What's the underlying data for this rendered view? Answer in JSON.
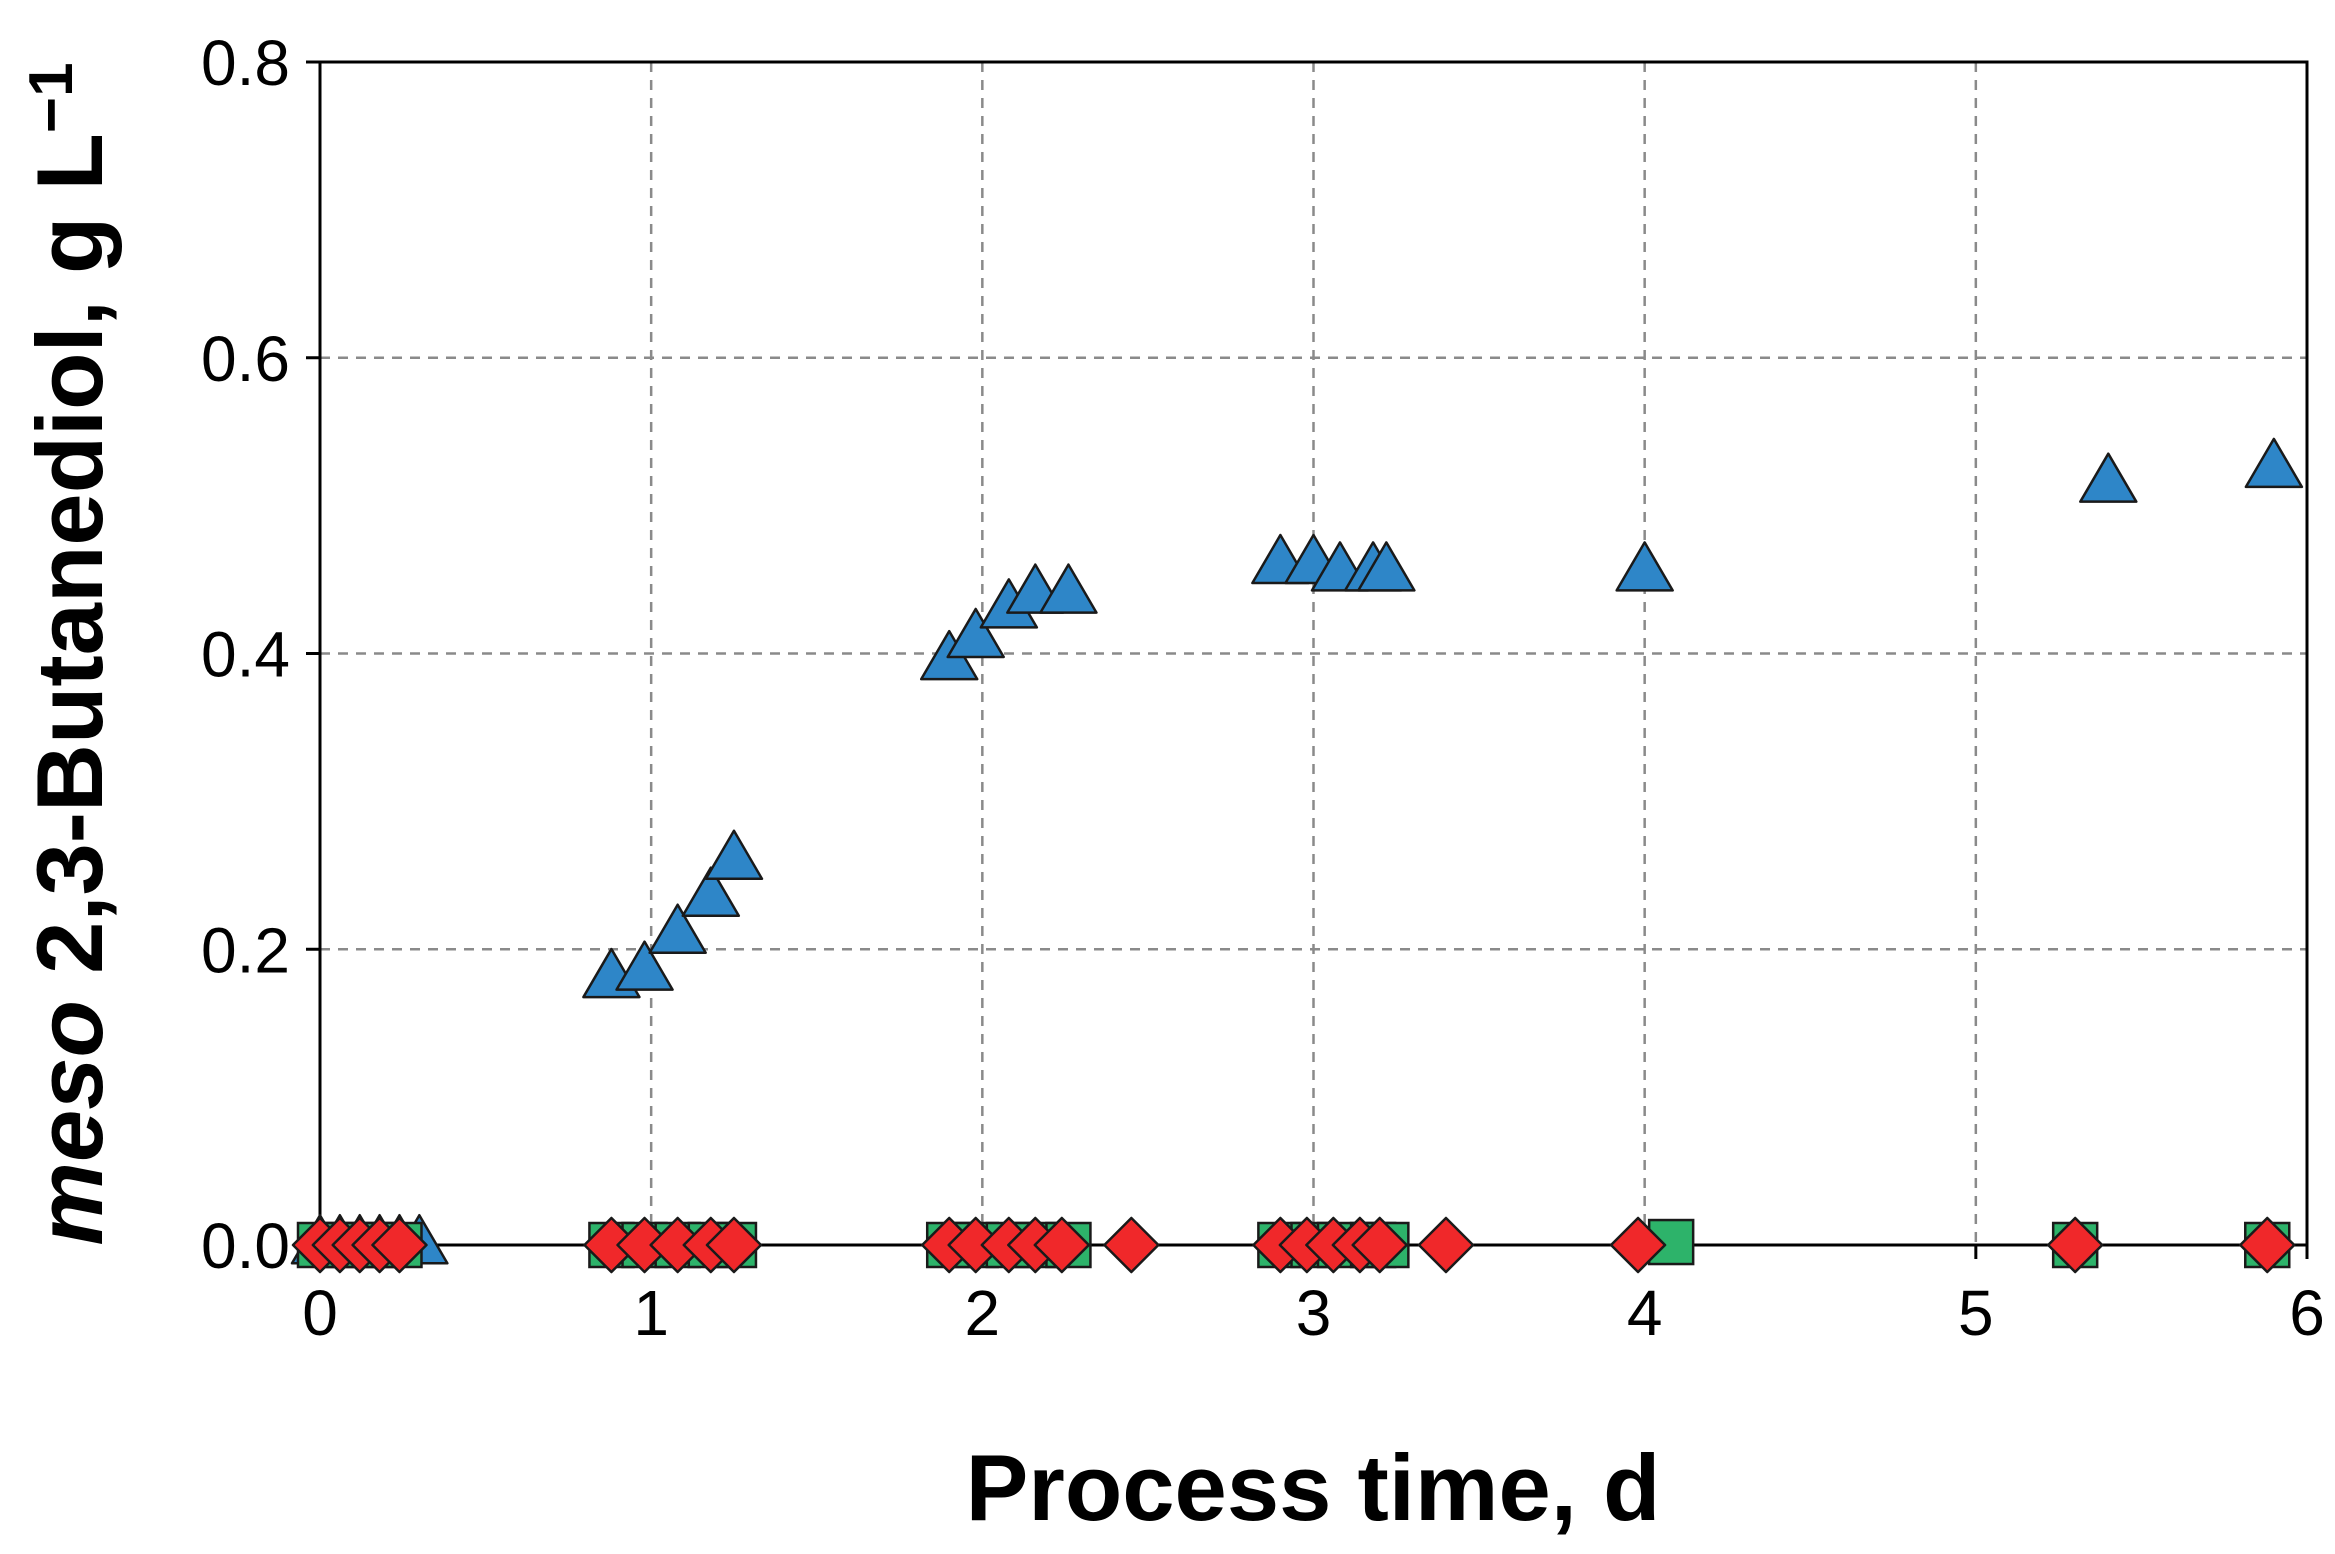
{
  "colors": {
    "series_triangle": "#2E86C8",
    "series_square": "#2DB36A",
    "series_diamond": "#F0282A",
    "marker_stroke": "#1a1a1a",
    "grid": "#8a8a8a",
    "axis": "#000000"
  },
  "chart_data": {
    "type": "scatter",
    "title": "",
    "xlabel": "Process time, d",
    "ylabel": {
      "italic_part": "meso",
      "rest": " 2,3-Butanediol, g L",
      "superscript": "−1"
    },
    "xlim": [
      0,
      6
    ],
    "ylim": [
      0,
      0.8
    ],
    "xticks": [
      "0",
      "1",
      "2",
      "3",
      "4",
      "5",
      "6"
    ],
    "yticks": [
      "0.0",
      "0.2",
      "0.4",
      "0.6",
      "0.8"
    ],
    "grid": true,
    "legend": "none",
    "series": [
      {
        "marker": "triangle",
        "color": "#2E86C8",
        "points": [
          [
            0.0,
            0.0
          ],
          [
            0.06,
            0.0
          ],
          [
            0.12,
            0.0
          ],
          [
            0.18,
            0.0
          ],
          [
            0.24,
            0.0
          ],
          [
            0.3,
            0.0
          ],
          [
            0.88,
            0.18
          ],
          [
            0.98,
            0.185
          ],
          [
            1.08,
            0.21
          ],
          [
            1.18,
            0.235
          ],
          [
            1.25,
            0.26
          ],
          [
            1.9,
            0.395
          ],
          [
            1.98,
            0.41
          ],
          [
            2.08,
            0.43
          ],
          [
            2.16,
            0.44
          ],
          [
            2.26,
            0.44
          ],
          [
            2.9,
            0.46
          ],
          [
            3.0,
            0.46
          ],
          [
            3.08,
            0.455
          ],
          [
            3.18,
            0.455
          ],
          [
            3.22,
            0.455
          ],
          [
            4.0,
            0.455
          ],
          [
            5.4,
            0.515
          ],
          [
            5.9,
            0.525
          ]
        ]
      },
      {
        "marker": "square",
        "color": "#2DB36A",
        "points": [
          [
            0.0,
            0.0
          ],
          [
            0.06,
            0.0
          ],
          [
            0.12,
            0.0
          ],
          [
            0.18,
            0.0
          ],
          [
            0.24,
            0.0
          ],
          [
            0.88,
            0.0
          ],
          [
            0.98,
            0.0
          ],
          [
            1.08,
            0.0
          ],
          [
            1.18,
            0.0
          ],
          [
            1.25,
            0.0
          ],
          [
            1.9,
            0.0
          ],
          [
            1.98,
            0.0
          ],
          [
            2.08,
            0.0
          ],
          [
            2.16,
            0.0
          ],
          [
            2.26,
            0.0
          ],
          [
            2.9,
            0.0
          ],
          [
            3.0,
            0.0
          ],
          [
            3.08,
            0.0
          ],
          [
            3.18,
            0.0
          ],
          [
            3.22,
            0.0
          ],
          [
            4.08,
            0.002
          ],
          [
            5.3,
            0.0
          ],
          [
            5.88,
            0.0
          ]
        ]
      },
      {
        "marker": "diamond",
        "color": "#F0282A",
        "points": [
          [
            0.0,
            0.0
          ],
          [
            0.06,
            0.0
          ],
          [
            0.12,
            0.0
          ],
          [
            0.18,
            0.0
          ],
          [
            0.24,
            0.0
          ],
          [
            0.88,
            0.0
          ],
          [
            0.98,
            0.0
          ],
          [
            1.08,
            0.0
          ],
          [
            1.18,
            0.0
          ],
          [
            1.25,
            0.0
          ],
          [
            1.9,
            0.0
          ],
          [
            1.98,
            0.0
          ],
          [
            2.08,
            0.0
          ],
          [
            2.16,
            0.0
          ],
          [
            2.24,
            0.0
          ],
          [
            2.45,
            0.0
          ],
          [
            2.9,
            0.0
          ],
          [
            2.98,
            0.0
          ],
          [
            3.06,
            0.0
          ],
          [
            3.14,
            0.0
          ],
          [
            3.2,
            0.0
          ],
          [
            3.4,
            0.0
          ],
          [
            3.98,
            0.0
          ],
          [
            5.3,
            0.0
          ],
          [
            5.88,
            0.0
          ]
        ]
      }
    ]
  }
}
